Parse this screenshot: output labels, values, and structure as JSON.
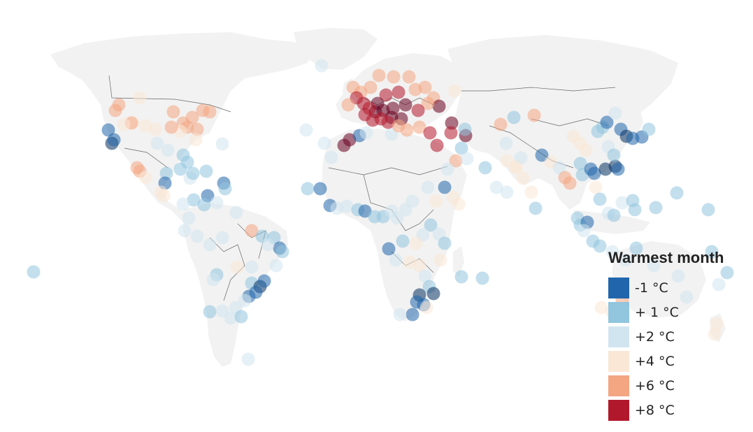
{
  "legend": {
    "title": "Warmest month",
    "items": [
      {
        "label": "-1 °C",
        "color": "#2166ac"
      },
      {
        "label": "+ 1 °C",
        "color": "#92c5de"
      },
      {
        "label": "+2 °C",
        "color": "#d1e5f0"
      },
      {
        "label": "+4 °C",
        "color": "#fbe7d6"
      },
      {
        "label": "+6 °C",
        "color": "#f4a582"
      },
      {
        "label": "+8 °C",
        "color": "#b2182b"
      }
    ]
  },
  "colors": {
    "land": "#f2f2f2",
    "borders": "#666666",
    "background": "#ffffff"
  },
  "map_data": {
    "type": "world proportional-circle map",
    "marker_opacity": 0.55
  }
}
